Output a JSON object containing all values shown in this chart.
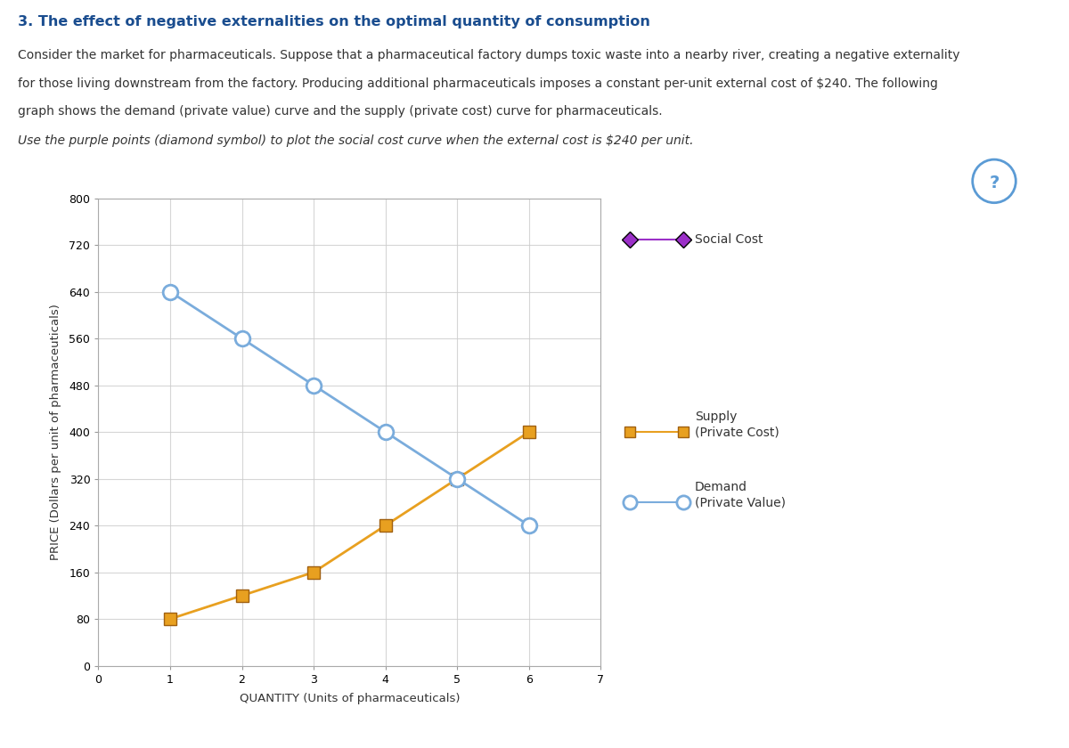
{
  "title": "3. The effect of negative externalities on the optimal quantity of consumption",
  "description_lines": [
    "Consider the market for pharmaceuticals. Suppose that a pharmaceutical factory dumps toxic waste into a nearby river, creating a negative externality",
    "for those living downstream from the factory. Producing additional pharmaceuticals imposes a constant per-unit external cost of $240. The following",
    "graph shows the demand (private value) curve and the supply (private cost) curve for pharmaceuticals."
  ],
  "instruction": "Use the purple points (diamond symbol) to plot the social cost curve when the external cost is $240 per unit.",
  "xlabel": "QUANTITY (Units of pharmaceuticals)",
  "ylabel": "PRICE (Dollars per unit of pharmaceuticals)",
  "xlim": [
    0,
    7
  ],
  "ylim": [
    0,
    800
  ],
  "xticks": [
    0,
    1,
    2,
    3,
    4,
    5,
    6,
    7
  ],
  "yticks": [
    0,
    80,
    160,
    240,
    320,
    400,
    480,
    560,
    640,
    720,
    800
  ],
  "supply_x": [
    1,
    2,
    3,
    4,
    5,
    6
  ],
  "supply_y": [
    80,
    120,
    160,
    240,
    320,
    400
  ],
  "demand_x": [
    1,
    2,
    3,
    4,
    5,
    6
  ],
  "demand_y": [
    640,
    560,
    480,
    400,
    320,
    240
  ],
  "supply_color": "#E8A020",
  "demand_color": "#7AACDC",
  "social_cost_color": "#9B30C8",
  "supply_marker": "s",
  "demand_marker": "o",
  "social_cost_marker": "D",
  "supply_label_line1": "Supply",
  "supply_label_line2": "(Private Cost)",
  "demand_label_line1": "Demand",
  "demand_label_line2": "(Private Value)",
  "social_cost_label": "Social Cost",
  "background_color": "#ffffff",
  "plot_bg_color": "#ffffff",
  "grid_color": "#cccccc",
  "title_color": "#1a4d8f",
  "text_color": "#333333",
  "marker_size": 10,
  "linewidth": 2.0,
  "question_mark_color": "#5b9bd5",
  "external_cost": 240,
  "box_border_color": "#cccccc",
  "supply_edge_color": "#a06010",
  "demand_edge_color": "#7AACDC"
}
